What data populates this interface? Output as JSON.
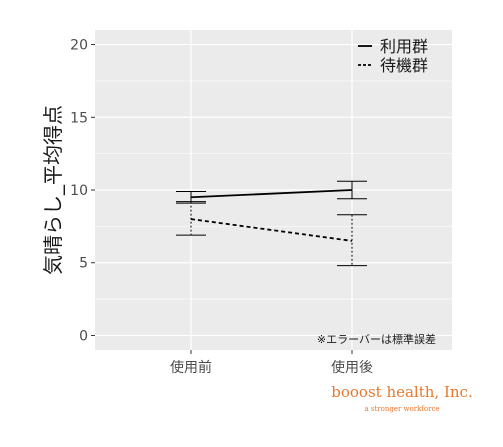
{
  "chart_data": {
    "type": "line",
    "categories": [
      "使用前",
      "使用後"
    ],
    "ylabel": "気晴らし_平均得点",
    "ylim": [
      -1,
      21
    ],
    "yticks": [
      0,
      5,
      10,
      15,
      20
    ],
    "grid": true,
    "legend_position": "top-right",
    "note": "※エラーバーは標準誤差",
    "series": [
      {
        "name": "利用群",
        "line_style": "solid",
        "values": [
          9.5,
          10.0
        ],
        "error_low": [
          9.1,
          9.4
        ],
        "error_high": [
          9.9,
          10.6
        ]
      },
      {
        "name": "待機群",
        "line_style": "dashed",
        "values": [
          8.0,
          6.5
        ],
        "error_low": [
          6.9,
          4.8
        ],
        "error_high": [
          9.2,
          8.3
        ]
      }
    ]
  },
  "colors": {
    "panel_background": "#ebebeb",
    "grid_line": "#ffffff",
    "series_line": "#000000",
    "brand": "#e8782d"
  },
  "brand": {
    "name": "booost health, Inc.",
    "tagline": "a stronger workforce"
  }
}
